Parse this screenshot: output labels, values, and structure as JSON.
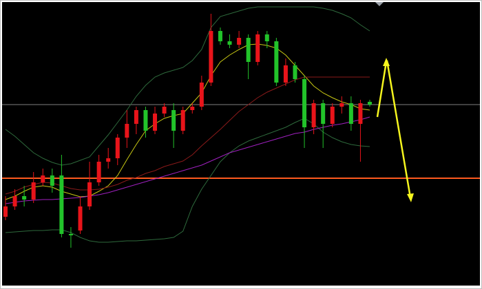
{
  "chart_data": {
    "type": "candlestick",
    "up_color": "#e8141a",
    "down_color": "#22c32a",
    "ylim": [
      0,
      412
    ],
    "open": [
      100,
      115,
      130,
      125,
      150,
      160,
      160,
      75,
      80,
      115,
      150,
      180,
      185,
      215,
      235,
      255,
      225,
      250,
      255,
      225,
      255,
      260,
      295,
      370,
      355,
      350,
      360,
      325,
      365,
      355,
      295,
      320,
      300,
      230,
      265,
      235,
      260,
      265,
      235,
      267
    ],
    "close": [
      115,
      130,
      125,
      150,
      160,
      145,
      75,
      73,
      115,
      150,
      180,
      185,
      215,
      235,
      255,
      225,
      250,
      260,
      225,
      255,
      260,
      295,
      370,
      355,
      350,
      360,
      325,
      365,
      355,
      295,
      320,
      300,
      230,
      265,
      235,
      260,
      265,
      235,
      265,
      263
    ],
    "high": [
      130,
      140,
      145,
      165,
      170,
      170,
      190,
      85,
      130,
      180,
      190,
      200,
      220,
      255,
      260,
      260,
      260,
      265,
      265,
      260,
      265,
      305,
      395,
      375,
      365,
      370,
      365,
      370,
      370,
      360,
      330,
      325,
      305,
      270,
      270,
      265,
      275,
      275,
      270,
      270
    ],
    "low": [
      95,
      110,
      115,
      120,
      145,
      135,
      70,
      55,
      75,
      110,
      145,
      170,
      175,
      200,
      220,
      215,
      220,
      245,
      200,
      220,
      250,
      255,
      290,
      350,
      345,
      345,
      300,
      320,
      345,
      290,
      290,
      295,
      200,
      220,
      200,
      230,
      250,
      225,
      180,
      260
    ],
    "lines": [
      {
        "color": "#2e6a3c",
        "values": [
          227,
          217,
          205,
          193,
          185,
          179,
          175,
          177,
          182,
          187,
          203,
          219,
          237,
          255,
          275,
          291,
          303,
          309,
          313,
          317,
          327,
          343,
          375,
          391,
          395,
          399,
          403,
          405,
          405,
          405,
          405,
          405,
          405,
          405,
          403,
          400,
          395,
          389,
          379,
          370
        ]
      },
      {
        "color": "#2e6a3c",
        "values": [
          77,
          78,
          79,
          80,
          80,
          81,
          81,
          77,
          70,
          65,
          63,
          63,
          64,
          65,
          65,
          66,
          67,
          68,
          70,
          79,
          115,
          140,
          160,
          180,
          193,
          203,
          210,
          215,
          220,
          225,
          230,
          237,
          243,
          235,
          223,
          215,
          209,
          205,
          203,
          202
        ]
      },
      {
        "color": "#c8c814",
        "values": [
          125,
          130,
          137,
          143,
          145,
          143,
          137,
          133,
          129,
          130,
          137,
          145,
          160,
          183,
          205,
          225,
          235,
          243,
          247,
          250,
          265,
          280,
          305,
          325,
          335,
          343,
          350,
          351,
          349,
          345,
          335,
          320,
          305,
          290,
          280,
          273,
          267,
          263,
          257,
          255
        ]
      },
      {
        "color": "#8b1a1a",
        "values": [
          133,
          137,
          143,
          147,
          150,
          149,
          145,
          141,
          139,
          139,
          140,
          143,
          147,
          153,
          157,
          163,
          167,
          173,
          177,
          181,
          190,
          203,
          215,
          227,
          240,
          253,
          263,
          273,
          281,
          287,
          293,
          299,
          303,
          303,
          303,
          303,
          303,
          303,
          303,
          303
        ]
      },
      {
        "color": "#a020c0",
        "values": [
          119,
          121,
          123,
          124,
          125,
          125,
          126,
          127,
          128,
          130,
          132,
          135,
          139,
          143,
          147,
          151,
          155,
          159,
          163,
          167,
          171,
          175,
          181,
          187,
          193,
          197,
          201,
          205,
          209,
          213,
          217,
          221,
          223,
          227,
          230,
          233,
          235,
          238,
          241,
          245
        ]
      }
    ],
    "levels": [
      {
        "value": 263,
        "color": "#7f7f7f"
      },
      {
        "value": 156,
        "color": "#ff5a1f"
      }
    ]
  }
}
